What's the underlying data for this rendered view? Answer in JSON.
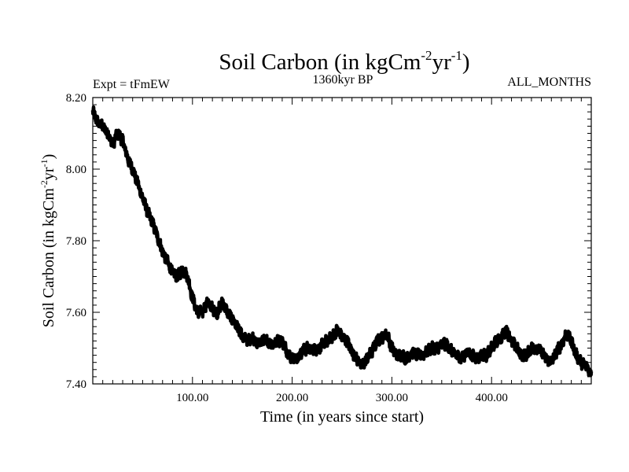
{
  "chart_data": {
    "type": "line",
    "title_main": "Soil Carbon (in kgCm",
    "title_sup1": "-2",
    "title_mid": "yr",
    "title_sup2": "-1",
    "title_end": ")",
    "left_label": "Expt = tFmEW",
    "center_label": "1360kyr BP",
    "right_label": "ALL_MONTHS",
    "xlabel": "Time (in years since start)",
    "ylabel_main": "Soil Carbon (in kgCm",
    "ylabel_sup1": "-2",
    "ylabel_mid": "yr",
    "ylabel_sup2": "-1",
    "ylabel_end": ")",
    "xlim": [
      0,
      500
    ],
    "ylim": [
      7.4,
      8.2
    ],
    "x_ticks": [
      100,
      200,
      300,
      400
    ],
    "x_tick_labels": [
      "100.00",
      "200.00",
      "300.00",
      "400.00"
    ],
    "y_ticks": [
      7.4,
      7.6,
      7.8,
      8.0,
      8.2
    ],
    "y_tick_labels": [
      "7.40",
      "7.60",
      "7.80",
      "8.00",
      "8.20"
    ],
    "line_color": "#000000",
    "series": [
      {
        "x": [
          0,
          5,
          10,
          15,
          20,
          25,
          30,
          35,
          40,
          45,
          50,
          55,
          60,
          65,
          70,
          75,
          80,
          85,
          90,
          95,
          100,
          105,
          110,
          115,
          120,
          125,
          130,
          135,
          140,
          145,
          150,
          155,
          160,
          165,
          170,
          175,
          180,
          185,
          190,
          195,
          200,
          205,
          210,
          215,
          220,
          225,
          230,
          235,
          240,
          245,
          250,
          255,
          260,
          265,
          270,
          275,
          280,
          285,
          290,
          295,
          300,
          305,
          310,
          315,
          320,
          325,
          330,
          335,
          340,
          345,
          350,
          355,
          360,
          365,
          370,
          375,
          380,
          385,
          390,
          395,
          400,
          405,
          410,
          415,
          420,
          425,
          430,
          435,
          440,
          445,
          450,
          455,
          460,
          465,
          470,
          475,
          480,
          485,
          490,
          495,
          500
        ],
        "values": [
          8.16,
          8.13,
          8.12,
          8.1,
          8.07,
          8.1,
          8.08,
          8.03,
          8.0,
          7.96,
          7.92,
          7.88,
          7.85,
          7.81,
          7.77,
          7.74,
          7.71,
          7.7,
          7.72,
          7.7,
          7.64,
          7.6,
          7.6,
          7.63,
          7.61,
          7.6,
          7.63,
          7.6,
          7.58,
          7.56,
          7.53,
          7.52,
          7.53,
          7.51,
          7.52,
          7.52,
          7.51,
          7.52,
          7.52,
          7.49,
          7.47,
          7.47,
          7.49,
          7.5,
          7.5,
          7.49,
          7.51,
          7.52,
          7.53,
          7.55,
          7.53,
          7.52,
          7.49,
          7.47,
          7.45,
          7.47,
          7.49,
          7.52,
          7.53,
          7.54,
          7.5,
          7.48,
          7.48,
          7.47,
          7.49,
          7.48,
          7.48,
          7.49,
          7.5,
          7.5,
          7.51,
          7.51,
          7.49,
          7.48,
          7.47,
          7.49,
          7.48,
          7.47,
          7.48,
          7.48,
          7.5,
          7.52,
          7.53,
          7.55,
          7.52,
          7.5,
          7.48,
          7.48,
          7.5,
          7.5,
          7.49,
          7.47,
          7.46,
          7.49,
          7.51,
          7.54,
          7.52,
          7.48,
          7.46,
          7.45,
          7.43
        ]
      }
    ]
  }
}
